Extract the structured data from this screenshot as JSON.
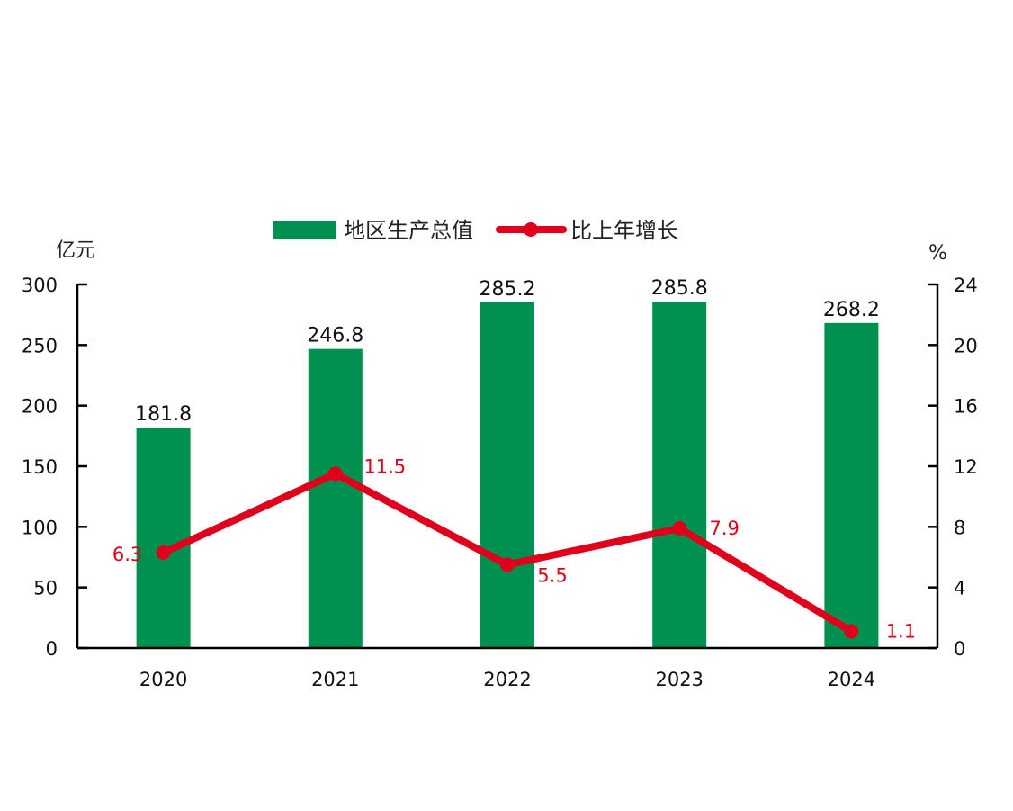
{
  "chart_data": {
    "type": "bar+line",
    "title": "",
    "categories": [
      "2020",
      "2021",
      "2022",
      "2023",
      "2024"
    ],
    "series": [
      {
        "name": "地区生产总值",
        "type": "bar",
        "axis": "left",
        "color": "#009150",
        "values": [
          181.8,
          246.8,
          285.2,
          285.8,
          268.2
        ],
        "labels": [
          "181.8",
          "246.8",
          "285.2",
          "285.8",
          "268.2"
        ]
      },
      {
        "name": "比上年增长",
        "type": "line",
        "axis": "right",
        "color": "#e0001b",
        "values": [
          6.3,
          11.5,
          5.5,
          7.9,
          1.1
        ],
        "labels": [
          "6.3",
          "11.5",
          "5.5",
          "7.9",
          "1.1"
        ]
      }
    ],
    "left_axis": {
      "label": "亿元",
      "ylim": [
        0,
        300
      ],
      "ticks": [
        "0",
        "50",
        "100",
        "150",
        "200",
        "250",
        "300"
      ]
    },
    "right_axis": {
      "label": "%",
      "ylim": [
        0,
        24
      ],
      "ticks": [
        "0",
        "4",
        "8",
        "12",
        "16",
        "20",
        "24"
      ]
    },
    "grid": false,
    "legend_position": "top"
  },
  "legend": {
    "bar_label": "地区生产总值",
    "line_label": "比上年增长"
  },
  "axes": {
    "left_unit": "亿元",
    "right_unit": "%"
  }
}
